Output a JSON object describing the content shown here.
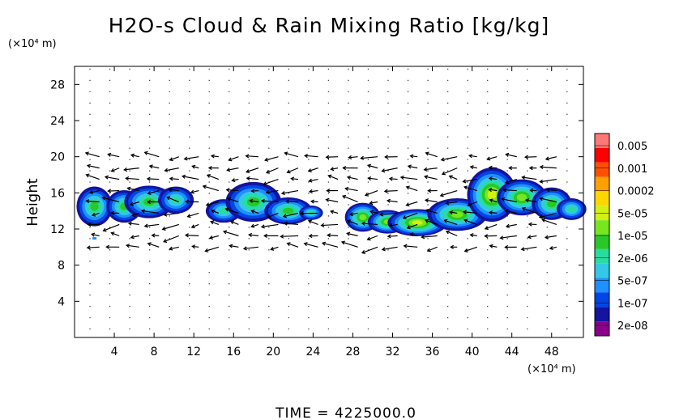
{
  "chart_data": {
    "type": "heatmap",
    "title": "H2O-s Cloud & Rain Mixing Ratio [kg/kg]",
    "xlabel": "",
    "ylabel": "Height",
    "x_unit": "(×10⁴ m)",
    "y_unit": "(×10⁴ m)",
    "xlim": [
      0,
      51.2
    ],
    "ylim": [
      0,
      30
    ],
    "x_ticks": [
      "4",
      "8",
      "12",
      "16",
      "20",
      "24",
      "28",
      "32",
      "36",
      "40",
      "44",
      "48"
    ],
    "y_ticks": [
      "4",
      "8",
      "12",
      "16",
      "20",
      "24",
      "28"
    ],
    "colorbar": {
      "labels": [
        "0.005",
        "0.001",
        "0.0002",
        "5e-05",
        "1e-05",
        "2e-06",
        "5e-07",
        "1e-07",
        "2e-08"
      ],
      "colors": [
        "#8b008b",
        "#1414a0",
        "#0046e6",
        "#1e90ff",
        "#32c8e6",
        "#28dca0",
        "#28c828",
        "#78e61e",
        "#d2f014",
        "#ffd700",
        "#ffa000",
        "#ff5000",
        "#ff0000",
        "#ff7878"
      ]
    },
    "cloud_layers": [
      {
        "x_range": [
          0.5,
          12
        ],
        "z_range": [
          12.5,
          17
        ],
        "max_mixing_ratio": "5e-07"
      },
      {
        "x_range": [
          13.5,
          24
        ],
        "z_range": [
          12.5,
          18
        ],
        "max_mixing_ratio": "5e-07"
      },
      {
        "x_range": [
          27.5,
          36
        ],
        "z_range": [
          11.5,
          16
        ],
        "max_mixing_ratio": "5e-05"
      },
      {
        "x_range": [
          34,
          51
        ],
        "z_range": [
          11.5,
          20
        ],
        "max_mixing_ratio": "0.0002"
      }
    ],
    "vector_field": "wind vectors; mostly westward (leftward) arrows between heights ~10 and ~20",
    "time_label": "TIME  =  4225000.0"
  }
}
